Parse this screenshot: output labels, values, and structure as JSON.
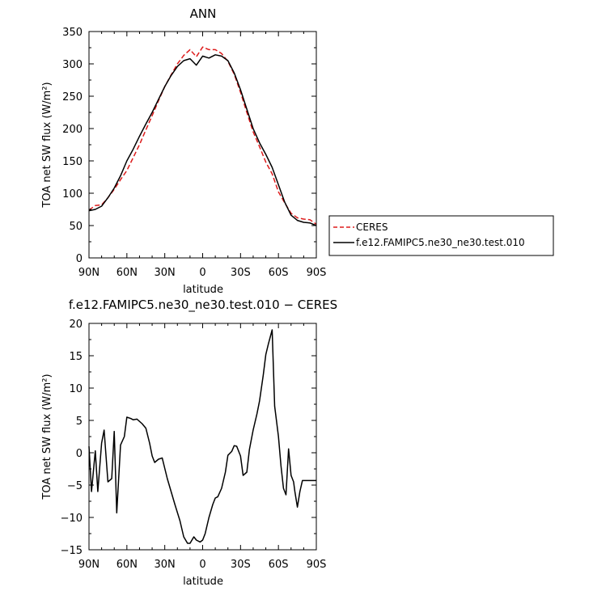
{
  "chart_data": [
    {
      "type": "line",
      "title": "ANN",
      "xlabel": "latitude",
      "ylabel": "TOA net SW flux (W/m²)",
      "x_ticks": [
        "90N",
        "60N",
        "30N",
        "0",
        "30S",
        "60S",
        "90S"
      ],
      "y_ticks": [
        "0",
        "50",
        "100",
        "150",
        "200",
        "250",
        "300",
        "350"
      ],
      "xlim": [
        90,
        -90
      ],
      "ylim": [
        0,
        350
      ],
      "legend_position": "right",
      "series": [
        {
          "name": "CERES",
          "color": "#dd1c1c",
          "dash": "dashed",
          "x": [
            90,
            85,
            80,
            75,
            70,
            65,
            60,
            55,
            50,
            45,
            40,
            35,
            30,
            25,
            20,
            15,
            10,
            5,
            0,
            -5,
            -10,
            -15,
            -20,
            -25,
            -30,
            -35,
            -40,
            -45,
            -50,
            -55,
            -60,
            -65,
            -70,
            -75,
            -80,
            -85,
            -90
          ],
          "y": [
            74,
            81,
            82,
            93,
            106,
            121,
            135,
            155,
            175,
            198,
            220,
            243,
            265,
            283,
            300,
            313,
            322,
            311,
            326,
            322,
            322,
            316,
            304,
            284,
            256,
            225,
            195,
            172,
            148,
            130,
            102,
            85,
            69,
            62,
            60,
            59,
            52
          ]
        },
        {
          "name": "f.e12.FAMIPC5.ne30_ne30.test.010",
          "color": "#000000",
          "dash": "solid",
          "x": [
            90,
            85,
            80,
            75,
            70,
            65,
            60,
            55,
            50,
            45,
            40,
            35,
            30,
            25,
            20,
            15,
            10,
            5,
            0,
            -5,
            -10,
            -15,
            -20,
            -25,
            -30,
            -35,
            -40,
            -45,
            -50,
            -55,
            -60,
            -65,
            -70,
            -75,
            -80,
            -85,
            -90
          ],
          "y": [
            73,
            75,
            80,
            93,
            108,
            127,
            150,
            168,
            188,
            207,
            225,
            245,
            265,
            282,
            296,
            305,
            308,
            298,
            312,
            309,
            314,
            312,
            305,
            286,
            260,
            230,
            200,
            178,
            160,
            140,
            113,
            86,
            66,
            58,
            55,
            54,
            50
          ]
        }
      ]
    },
    {
      "type": "line",
      "title": "f.e12.FAMIPC5.ne30_ne30.test.010 − CERES",
      "xlabel": "latitude",
      "ylabel": "TOA net SW flux (W/m²)",
      "x_ticks": [
        "90N",
        "60N",
        "30N",
        "0",
        "30S",
        "60S",
        "90S"
      ],
      "y_ticks": [
        "−15",
        "−10",
        "−5",
        "0",
        "5",
        "10",
        "15",
        "20"
      ],
      "xlim": [
        90,
        -90
      ],
      "ylim": [
        -15,
        20
      ],
      "series": [
        {
          "color": "#000000",
          "x": [
            90,
            88,
            85,
            83,
            80,
            78,
            75,
            72,
            70,
            68,
            65,
            62,
            60,
            57,
            55,
            52,
            48,
            45,
            42,
            40,
            38,
            35,
            32,
            28,
            25,
            22,
            18,
            15,
            12,
            10,
            7,
            5,
            2,
            0,
            -2,
            -5,
            -8,
            -10,
            -12,
            -15,
            -18,
            -20,
            -23,
            -25,
            -27,
            -30,
            -32,
            -35,
            -37,
            -40,
            -43,
            -45,
            -48,
            -50,
            -52,
            -55,
            -57,
            -60,
            -62,
            -64,
            -66,
            -68,
            -70,
            -72,
            -73,
            -75,
            -77,
            -79,
            -81,
            -83,
            -85,
            -87,
            -90
          ],
          "y": [
            1,
            -6,
            0.3,
            -6,
            1.5,
            3.5,
            -4.5,
            -4,
            3.3,
            -9.3,
            1.2,
            2.5,
            5.5,
            5.3,
            5.1,
            5.2,
            4.5,
            3.8,
            1.5,
            -0.5,
            -1.5,
            -1,
            -0.8,
            -4,
            -6,
            -8,
            -10.5,
            -13,
            -14,
            -14,
            -13,
            -13.5,
            -13.8,
            -13.5,
            -12.5,
            -10,
            -8,
            -7,
            -6.8,
            -5.5,
            -3,
            -0.4,
            0.2,
            1.1,
            1,
            -0.5,
            -3.5,
            -3,
            0.5,
            3.5,
            6,
            8,
            12,
            15.2,
            16.8,
            19,
            7.2,
            2.5,
            -2,
            -5.5,
            -6.5,
            0.6,
            -3.5,
            -4.5,
            -6,
            -8.4,
            -6,
            -4.3,
            -4.3,
            -4.3,
            -4.3,
            -4.3,
            -4.3
          ]
        }
      ]
    }
  ]
}
